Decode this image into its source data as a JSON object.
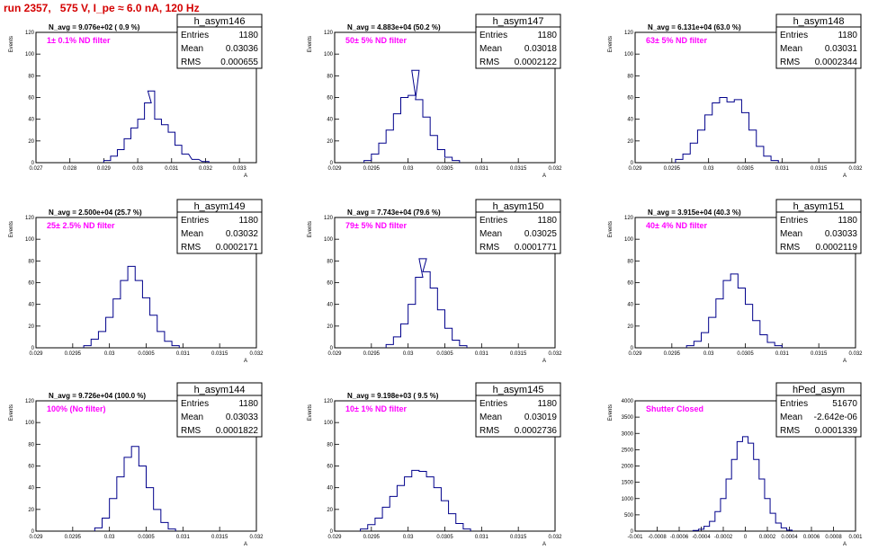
{
  "run_title": "run 2357,   575 V, I_pe ≈ 6.0 nA, 120 Hz",
  "colors": {
    "title": "#d40000",
    "histogram": "#00008b",
    "annotation": "#ff00ff"
  },
  "chart_data": [
    {
      "type": "histogram",
      "name": "h_asym146",
      "navg": "N_avg = 9.076e+02 ( 0.9 %)",
      "filter": "1± 0.1% ND filter",
      "entries": "1180",
      "mean": "0.03036",
      "rms": "0.000655",
      "ylabel": "Events",
      "xlabel": "A",
      "xlim": [
        0.027,
        0.0335
      ],
      "ylim": [
        0,
        120
      ],
      "xticks": [
        0.027,
        0.028,
        0.029,
        0.03,
        0.031,
        0.032,
        0.033
      ],
      "xticklabels": [
        "0.027",
        "0.028",
        "0.029",
        "0.03",
        "0.031",
        "0.032",
        "0.033"
      ],
      "yticks": [
        0,
        20,
        40,
        60,
        80,
        100,
        120
      ],
      "x": [
        0.0291,
        0.0293,
        0.0295,
        0.0297,
        0.0299,
        0.0301,
        0.0303,
        0.0304,
        0.0306,
        0.0308,
        0.031,
        0.0312,
        0.0314,
        0.0317,
        0.032
      ],
      "y": [
        2,
        6,
        12,
        22,
        32,
        40,
        55,
        66,
        40,
        35,
        28,
        16,
        8,
        3,
        1
      ]
    },
    {
      "type": "histogram",
      "name": "h_asym147",
      "navg": "N_avg = 4.883e+04 (50.2 %)",
      "filter": "50± 5% ND filter",
      "entries": "1180",
      "mean": "0.03018",
      "rms": "0.0002122",
      "ylabel": "Events",
      "xlabel": "A",
      "xlim": [
        0.029,
        0.032
      ],
      "ylim": [
        0,
        120
      ],
      "xticks": [
        0.029,
        0.0295,
        0.03,
        0.0305,
        0.031,
        0.0315,
        0.032
      ],
      "xticklabels": [
        "0.029",
        "0.0295",
        "0.03",
        "0.0305",
        "0.031",
        "0.0315",
        "0.032"
      ],
      "yticks": [
        0,
        20,
        40,
        60,
        80,
        100,
        120
      ],
      "x": [
        0.02945,
        0.02955,
        0.02965,
        0.02975,
        0.02985,
        0.02995,
        0.03005,
        0.0301,
        0.03015,
        0.03025,
        0.03035,
        0.03045,
        0.03055,
        0.03065
      ],
      "y": [
        2,
        8,
        18,
        30,
        45,
        60,
        62,
        85,
        58,
        42,
        25,
        12,
        5,
        2
      ]
    },
    {
      "type": "histogram",
      "name": "h_asym148",
      "navg": "N_avg = 6.131e+04 (63.0 %)",
      "filter": "63± 5% ND filter",
      "entries": "1180",
      "mean": "0.03031",
      "rms": "0.0002344",
      "ylabel": "Events",
      "xlabel": "A",
      "xlim": [
        0.029,
        0.032
      ],
      "ylim": [
        0,
        120
      ],
      "xticks": [
        0.029,
        0.0295,
        0.03,
        0.0305,
        0.031,
        0.0315,
        0.032
      ],
      "xticklabels": [
        "0.029",
        "0.0295",
        "0.03",
        "0.0305",
        "0.031",
        "0.0315",
        "0.032"
      ],
      "yticks": [
        0,
        20,
        40,
        60,
        80,
        100,
        120
      ],
      "x": [
        0.0296,
        0.0297,
        0.0298,
        0.0299,
        0.03,
        0.0301,
        0.0302,
        0.0303,
        0.0304,
        0.0305,
        0.0306,
        0.0307,
        0.0308,
        0.0309
      ],
      "y": [
        3,
        8,
        18,
        30,
        44,
        55,
        60,
        56,
        58,
        46,
        30,
        15,
        6,
        2
      ]
    },
    {
      "type": "histogram",
      "name": "h_asym149",
      "navg": "N_avg = 2.500e+04 (25.7 %)",
      "filter": "25± 2.5% ND filter",
      "entries": "1180",
      "mean": "0.03032",
      "rms": "0.0002171",
      "ylabel": "Events",
      "xlabel": "A",
      "xlim": [
        0.029,
        0.032
      ],
      "ylim": [
        0,
        120
      ],
      "xticks": [
        0.029,
        0.0295,
        0.03,
        0.0305,
        0.031,
        0.0315,
        0.032
      ],
      "xticklabels": [
        "0.029",
        "0.0295",
        "0.03",
        "0.0305",
        "0.031",
        "0.0315",
        "0.032"
      ],
      "yticks": [
        0,
        20,
        40,
        60,
        80,
        100,
        120
      ],
      "x": [
        0.0297,
        0.0298,
        0.0299,
        0.03,
        0.0301,
        0.0302,
        0.0303,
        0.0304,
        0.0305,
        0.0306,
        0.0307,
        0.0308,
        0.0309
      ],
      "y": [
        2,
        8,
        15,
        28,
        45,
        62,
        75,
        62,
        46,
        30,
        15,
        6,
        2
      ]
    },
    {
      "type": "histogram",
      "name": "h_asym150",
      "navg": "N_avg = 7.743e+04 (79.6 %)",
      "filter": "79± 5% ND filter",
      "entries": "1180",
      "mean": "0.03025",
      "rms": "0.0001771",
      "ylabel": "Events",
      "xlabel": "A",
      "xlim": [
        0.029,
        0.032
      ],
      "ylim": [
        0,
        120
      ],
      "xticks": [
        0.029,
        0.0295,
        0.03,
        0.0305,
        0.031,
        0.0315,
        0.032
      ],
      "xticklabels": [
        "0.029",
        "0.0295",
        "0.03",
        "0.0305",
        "0.031",
        "0.0315",
        "0.032"
      ],
      "yticks": [
        0,
        20,
        40,
        60,
        80,
        100,
        120
      ],
      "x": [
        0.02975,
        0.02985,
        0.02995,
        0.03005,
        0.03015,
        0.0302,
        0.03025,
        0.03035,
        0.03045,
        0.03055,
        0.03065,
        0.03075
      ],
      "y": [
        3,
        10,
        22,
        40,
        65,
        82,
        70,
        55,
        35,
        18,
        7,
        2
      ]
    },
    {
      "type": "histogram",
      "name": "h_asym151",
      "navg": "N_avg = 3.915e+04 (40.3 %)",
      "filter": "40± 4% ND filter",
      "entries": "1180",
      "mean": "0.03033",
      "rms": "0.0002119",
      "ylabel": "Events",
      "xlabel": "A",
      "xlim": [
        0.029,
        0.032
      ],
      "ylim": [
        0,
        120
      ],
      "xticks": [
        0.029,
        0.0295,
        0.03,
        0.0305,
        0.031,
        0.0315,
        0.032
      ],
      "xticklabels": [
        "0.029",
        "0.0295",
        "0.03",
        "0.0305",
        "0.031",
        "0.0315",
        "0.032"
      ],
      "yticks": [
        0,
        20,
        40,
        60,
        80,
        100,
        120
      ],
      "x": [
        0.02975,
        0.02985,
        0.02995,
        0.03005,
        0.03015,
        0.03025,
        0.03035,
        0.03045,
        0.03055,
        0.03065,
        0.03075,
        0.03085,
        0.03095
      ],
      "y": [
        2,
        6,
        14,
        28,
        45,
        62,
        68,
        55,
        40,
        25,
        12,
        5,
        2
      ]
    },
    {
      "type": "histogram",
      "name": "h_asym144",
      "navg": "N_avg = 9.726e+04 (100.0 %)",
      "filter": "100% (No filter)",
      "entries": "1180",
      "mean": "0.03033",
      "rms": "0.0001822",
      "ylabel": "Events",
      "xlabel": "A",
      "xlim": [
        0.029,
        0.032
      ],
      "ylim": [
        0,
        120
      ],
      "xticks": [
        0.029,
        0.0295,
        0.03,
        0.0305,
        0.031,
        0.0315,
        0.032
      ],
      "xticklabels": [
        "0.029",
        "0.0295",
        "0.03",
        "0.0305",
        "0.031",
        "0.0315",
        "0.032"
      ],
      "yticks": [
        0,
        20,
        40,
        60,
        80,
        100,
        120
      ],
      "x": [
        0.02985,
        0.02995,
        0.03005,
        0.03015,
        0.03025,
        0.03035,
        0.03045,
        0.03055,
        0.03065,
        0.03075,
        0.03085
      ],
      "y": [
        3,
        12,
        30,
        50,
        68,
        78,
        60,
        40,
        20,
        8,
        2
      ]
    },
    {
      "type": "histogram",
      "name": "h_asym145",
      "navg": "N_avg = 9.198e+03 ( 9.5 %)",
      "filter": "10± 1% ND filter",
      "entries": "1180",
      "mean": "0.03019",
      "rms": "0.0002736",
      "ylabel": "Events",
      "xlabel": "A",
      "xlim": [
        0.029,
        0.032
      ],
      "ylim": [
        0,
        120
      ],
      "xticks": [
        0.029,
        0.0295,
        0.03,
        0.0305,
        0.031,
        0.0315,
        0.032
      ],
      "xticklabels": [
        "0.029",
        "0.0295",
        "0.03",
        "0.0305",
        "0.031",
        "0.0315",
        "0.032"
      ],
      "yticks": [
        0,
        20,
        40,
        60,
        80,
        100,
        120
      ],
      "x": [
        0.0294,
        0.0295,
        0.0296,
        0.0297,
        0.0298,
        0.0299,
        0.03,
        0.0301,
        0.0302,
        0.0303,
        0.0304,
        0.0305,
        0.0306,
        0.0307,
        0.0308
      ],
      "y": [
        2,
        6,
        12,
        22,
        32,
        42,
        50,
        56,
        55,
        50,
        40,
        28,
        16,
        7,
        2
      ]
    },
    {
      "type": "histogram",
      "name": "hPed_asym",
      "navg": "",
      "filter": "Shutter Closed",
      "entries": "51670",
      "mean": "-2.642e-06",
      "rms": "0.0001339",
      "ylabel": "Events",
      "xlabel": "A",
      "xlim": [
        -0.001,
        0.001
      ],
      "ylim": [
        0,
        4000
      ],
      "xticks": [
        -0.001,
        -0.0008,
        -0.0006,
        -0.0004,
        -0.0002,
        0,
        0.0002,
        0.0004,
        0.0006,
        0.0008,
        0.001
      ],
      "xticklabels": [
        "-0.001",
        "-0.0008",
        "-0.0006",
        "-0.0004",
        "-0.0002",
        "0",
        "0.0002",
        "0.0004",
        "0.0006",
        "0.0008",
        "0.001"
      ],
      "yticks": [
        0,
        500,
        1000,
        1500,
        2000,
        2500,
        3000,
        3500,
        4000
      ],
      "x": [
        -0.00045,
        -0.0004,
        -0.00035,
        -0.0003,
        -0.00025,
        -0.0002,
        -0.00015,
        -0.0001,
        -5e-05,
        0,
        5e-05,
        0.0001,
        0.00015,
        0.0002,
        0.00025,
        0.0003,
        0.00035,
        0.0004
      ],
      "y": [
        20,
        60,
        150,
        300,
        600,
        1000,
        1600,
        2200,
        2750,
        2900,
        2700,
        2200,
        1600,
        1000,
        550,
        250,
        100,
        30
      ]
    }
  ]
}
